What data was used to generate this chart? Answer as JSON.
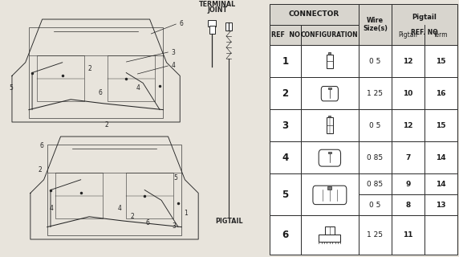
{
  "bg_color": "#e8e4dc",
  "table_lc": "#2a2a2a",
  "text_color": "#1a1a1a",
  "header_bg": "#d8d5ce",
  "row_details": {
    "1": [
      [
        "0 5",
        "12",
        "15"
      ]
    ],
    "2": [
      [
        "1 25",
        "10",
        "16"
      ]
    ],
    "3": [
      [
        "0 5",
        "12",
        "15"
      ]
    ],
    "4": [
      [
        "0 85",
        "7",
        "14"
      ]
    ],
    "5": [
      [
        "0 85",
        "9",
        "14"
      ],
      [
        "0 5",
        "8",
        "13"
      ]
    ],
    "6": [
      [
        "1 25",
        "11",
        ""
      ]
    ]
  }
}
